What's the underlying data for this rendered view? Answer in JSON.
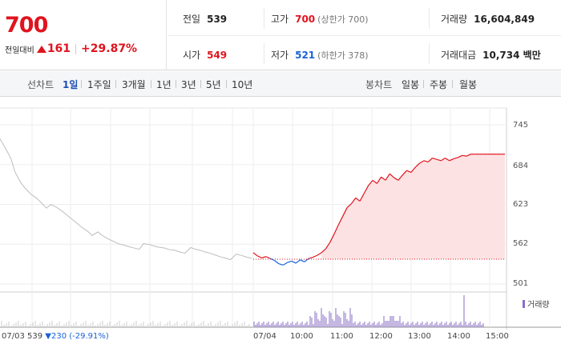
{
  "quote": {
    "price": "700",
    "change_label": "전일대비",
    "change_amount": "161",
    "change_rate": "+29.87%"
  },
  "stats": {
    "prev_close_label": "전일",
    "prev_close": "539",
    "high_label": "고가",
    "high": "700",
    "upper_limit": "(상한가 700)",
    "volume_label": "거래량",
    "volume": "16,604,849",
    "open_label": "시가",
    "open": "549",
    "low_label": "저가",
    "low": "521",
    "lower_limit": "(하한가 378)",
    "amount_label": "거래대금",
    "amount": "10,734 백만"
  },
  "tabs": {
    "line_chart_label": "선차트",
    "line_tabs": [
      "1일",
      "1주일",
      "3개월",
      "1년",
      "3년",
      "5년",
      "10년"
    ],
    "selected": "1일",
    "candle_chart_label": "봉차트",
    "candle_tabs": [
      "일봉",
      "주봉",
      "월봉"
    ]
  },
  "chart_legend": {
    "volume": "거래량"
  },
  "prev_day": {
    "date": "07/03",
    "close": "539",
    "change": "▼230",
    "rate": "(-29.91%)"
  },
  "colors": {
    "up": "#e0141e",
    "down": "#1961d6",
    "prev_line": "#bdbdbd",
    "volume": "#8a6fc3",
    "fill": "#fde2e3"
  },
  "chart_data": {
    "type": "line",
    "title": "",
    "y_ticks": [
      745,
      684,
      623,
      562,
      501
    ],
    "ylim": [
      501,
      745
    ],
    "x_ticks": [
      "07/03",
      "07/04",
      "10:00",
      "11:00",
      "12:00",
      "13:00",
      "14:00",
      "15:00"
    ],
    "baseline": 539,
    "series": [
      {
        "values_prev_day": [
          730,
          705,
          690,
          670,
          655,
          648,
          640,
          635,
          630,
          622,
          618,
          615,
          610,
          606,
          600,
          596,
          590,
          585,
          580,
          576,
          572,
          568,
          565,
          563,
          562,
          561,
          560,
          559,
          558,
          558,
          557,
          556,
          556,
          555,
          555,
          554,
          553,
          552,
          551,
          550,
          549,
          548,
          546,
          545,
          544,
          543,
          542,
          541,
          540,
          539
        ]
      },
      {
        "values_today": [
          549,
          544,
          541,
          543,
          540,
          537,
          532,
          530,
          534,
          536,
          533,
          538,
          535,
          540,
          542,
          545,
          549,
          555,
          565,
          578,
          592,
          605,
          618,
          624,
          633,
          628,
          640,
          652,
          660,
          655,
          665,
          660,
          670,
          664,
          660,
          668,
          675,
          672,
          680,
          686,
          690,
          688,
          694,
          692,
          690,
          694,
          690,
          693,
          695,
          698,
          697,
          700,
          700,
          700,
          700,
          700,
          700,
          700,
          700,
          700
        ]
      }
    ]
  }
}
